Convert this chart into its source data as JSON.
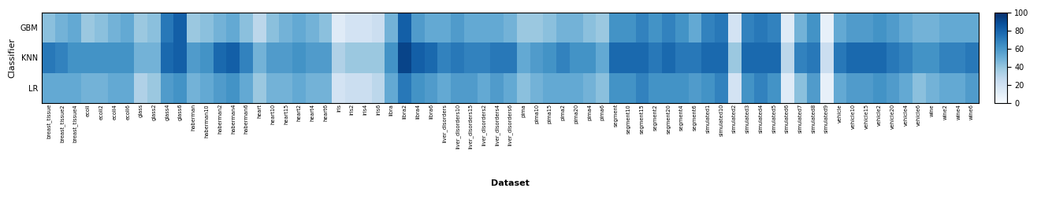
{
  "classifiers": [
    "GBM",
    "KNN",
    "LR"
  ],
  "datasets": [
    "breast_tissue",
    "breast_tissue2",
    "breast_tissue4",
    "ecoli",
    "ecoli2",
    "ecoli4",
    "ecoli6",
    "glass",
    "glass2",
    "glass4",
    "glass6",
    "haberman",
    "haberman10",
    "haberman2",
    "haberman4",
    "haberman6",
    "heart",
    "heart10",
    "heart15",
    "heart2",
    "heart4",
    "heart6",
    "iris",
    "iris2",
    "iris4",
    "iris6",
    "libra",
    "libra2",
    "libra4",
    "libra6",
    "liver_disorders",
    "liver_disorders10",
    "liver_disorders15",
    "liver_disorders2",
    "liver_disorders4",
    "liver_disorders6",
    "pima",
    "pima10",
    "pima15",
    "pima2",
    "pima20",
    "pima4",
    "pima6",
    "segment",
    "segment10",
    "segment15",
    "segment2",
    "segment20",
    "segment4",
    "segment6",
    "simulated1",
    "simulated10",
    "simulated2",
    "simulated3",
    "simulated4",
    "simulated5",
    "simulated6",
    "simulated7",
    "simulated8",
    "simulated9",
    "vehicle",
    "vehicle10",
    "vehicle15",
    "vehicle2",
    "vehicle20",
    "vehicle4",
    "vehicle6",
    "wine",
    "wine2",
    "wine4",
    "wine6"
  ],
  "GBM": [
    42,
    48,
    52,
    38,
    42,
    48,
    52,
    38,
    42,
    72,
    82,
    38,
    42,
    48,
    52,
    42,
    28,
    42,
    48,
    52,
    48,
    42,
    12,
    18,
    18,
    22,
    48,
    82,
    58,
    52,
    52,
    58,
    52,
    52,
    52,
    48,
    38,
    38,
    42,
    48,
    48,
    42,
    38,
    62,
    62,
    68,
    62,
    68,
    62,
    52,
    68,
    72,
    18,
    68,
    72,
    68,
    12,
    48,
    62,
    8,
    52,
    58,
    58,
    62,
    58,
    52,
    48,
    48,
    52,
    52,
    52
  ],
  "KNN": [
    72,
    68,
    62,
    62,
    62,
    62,
    62,
    48,
    48,
    78,
    82,
    58,
    62,
    78,
    82,
    68,
    48,
    58,
    58,
    62,
    58,
    58,
    32,
    38,
    38,
    38,
    62,
    92,
    82,
    78,
    68,
    72,
    68,
    68,
    72,
    72,
    52,
    58,
    62,
    68,
    62,
    62,
    52,
    78,
    78,
    78,
    72,
    78,
    72,
    72,
    78,
    78,
    38,
    78,
    78,
    78,
    28,
    68,
    72,
    22,
    72,
    78,
    78,
    78,
    72,
    68,
    62,
    62,
    68,
    68,
    72
  ],
  "LR": [
    52,
    52,
    52,
    48,
    48,
    52,
    52,
    32,
    38,
    58,
    62,
    48,
    52,
    58,
    62,
    52,
    38,
    48,
    48,
    52,
    48,
    48,
    18,
    22,
    22,
    28,
    52,
    72,
    62,
    58,
    52,
    58,
    58,
    52,
    58,
    52,
    42,
    48,
    52,
    52,
    52,
    48,
    42,
    62,
    62,
    68,
    62,
    62,
    62,
    58,
    62,
    68,
    18,
    62,
    68,
    62,
    12,
    42,
    58,
    8,
    52,
    58,
    58,
    62,
    58,
    52,
    42,
    48,
    52,
    52,
    58
  ],
  "colormap": "Blues",
  "vmin": 0,
  "vmax": 100,
  "ylabel": "Classifier",
  "xlabel": "Dataset",
  "colorbar_ticks": [
    0,
    20,
    40,
    60,
    80,
    100
  ]
}
